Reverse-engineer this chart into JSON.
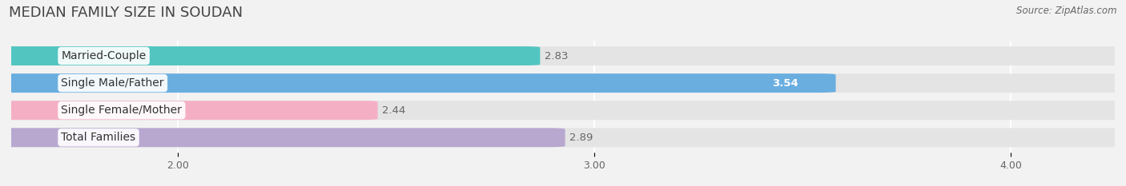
{
  "title": "MEDIAN FAMILY SIZE IN SOUDAN",
  "source": "Source: ZipAtlas.com",
  "categories": [
    "Married-Couple",
    "Single Male/Father",
    "Single Female/Mother",
    "Total Families"
  ],
  "values": [
    2.83,
    3.54,
    2.44,
    2.89
  ],
  "bar_colors": [
    "#52c5c0",
    "#6aaee0",
    "#f5afc4",
    "#b8a8d0"
  ],
  "xlim": [
    1.6,
    4.25
  ],
  "data_min": 2.0,
  "xticks": [
    2.0,
    3.0,
    4.0
  ],
  "xtick_labels": [
    "2.00",
    "3.00",
    "4.00"
  ],
  "bar_height": 0.62,
  "label_fontsize": 10,
  "title_fontsize": 13,
  "value_fontsize": 9.5,
  "background_color": "#f2f2f2",
  "bar_background_color": "#e4e4e4",
  "grid_color": "#ffffff",
  "value_on_bar_color": "#ffffff",
  "value_off_bar_color": "#666666",
  "value_on_bar_index": 1
}
